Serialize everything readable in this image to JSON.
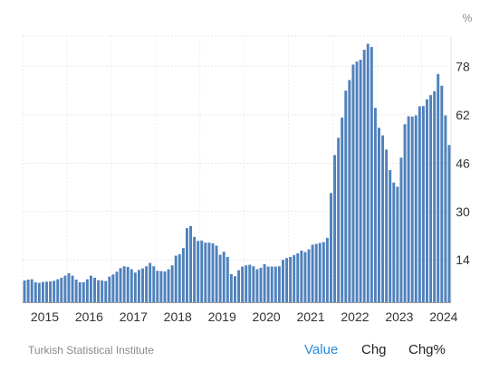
{
  "chart_data": {
    "type": "bar",
    "unit": "%",
    "color": "#4f81bd",
    "grid": true,
    "ylim": [
      0,
      88
    ],
    "yticks": [
      14,
      30,
      46,
      62,
      78
    ],
    "x_tick_labels": [
      "2015",
      "2016",
      "2017",
      "2018",
      "2019",
      "2020",
      "2021",
      "2022",
      "2023",
      "2024"
    ],
    "start": "2015-01",
    "values": [
      7.2,
      7.5,
      7.6,
      6.6,
      6.4,
      6.7,
      6.8,
      6.9,
      7.1,
      7.6,
      8.1,
      8.8,
      9.6,
      8.8,
      7.5,
      6.6,
      6.6,
      7.6,
      8.8,
      8.1,
      7.3,
      7.2,
      7.0,
      8.5,
      9.2,
      10.1,
      11.3,
      11.9,
      11.7,
      10.9,
      9.8,
      10.7,
      11.2,
      11.9,
      13.0,
      11.9,
      10.4,
      10.3,
      10.2,
      10.9,
      12.2,
      15.4,
      15.9,
      17.9,
      24.5,
      25.2,
      21.6,
      20.3,
      20.4,
      19.7,
      19.7,
      19.5,
      18.7,
      15.7,
      16.7,
      15.0,
      9.3,
      8.6,
      10.6,
      11.8,
      12.2,
      12.4,
      11.9,
      10.9,
      11.4,
      12.6,
      11.8,
      11.8,
      11.8,
      11.9,
      14.0,
      14.6,
      15.0,
      15.6,
      16.2,
      17.1,
      16.6,
      17.5,
      19.0,
      19.3,
      19.6,
      19.9,
      21.3,
      36.1,
      48.7,
      54.4,
      61.1,
      70.0,
      73.5,
      78.6,
      79.6,
      80.2,
      83.5,
      85.5,
      84.4,
      64.3,
      57.7,
      55.2,
      50.5,
      43.7,
      39.6,
      38.2,
      47.8,
      58.9,
      61.5,
      61.4,
      61.8,
      64.8,
      64.9,
      67.1,
      68.5,
      69.8,
      75.5,
      71.6,
      61.8,
      52.0
    ]
  },
  "footer": {
    "source": "Turkish Statistical Institute",
    "tabs": [
      "Value",
      "Chg",
      "Chg%"
    ]
  }
}
